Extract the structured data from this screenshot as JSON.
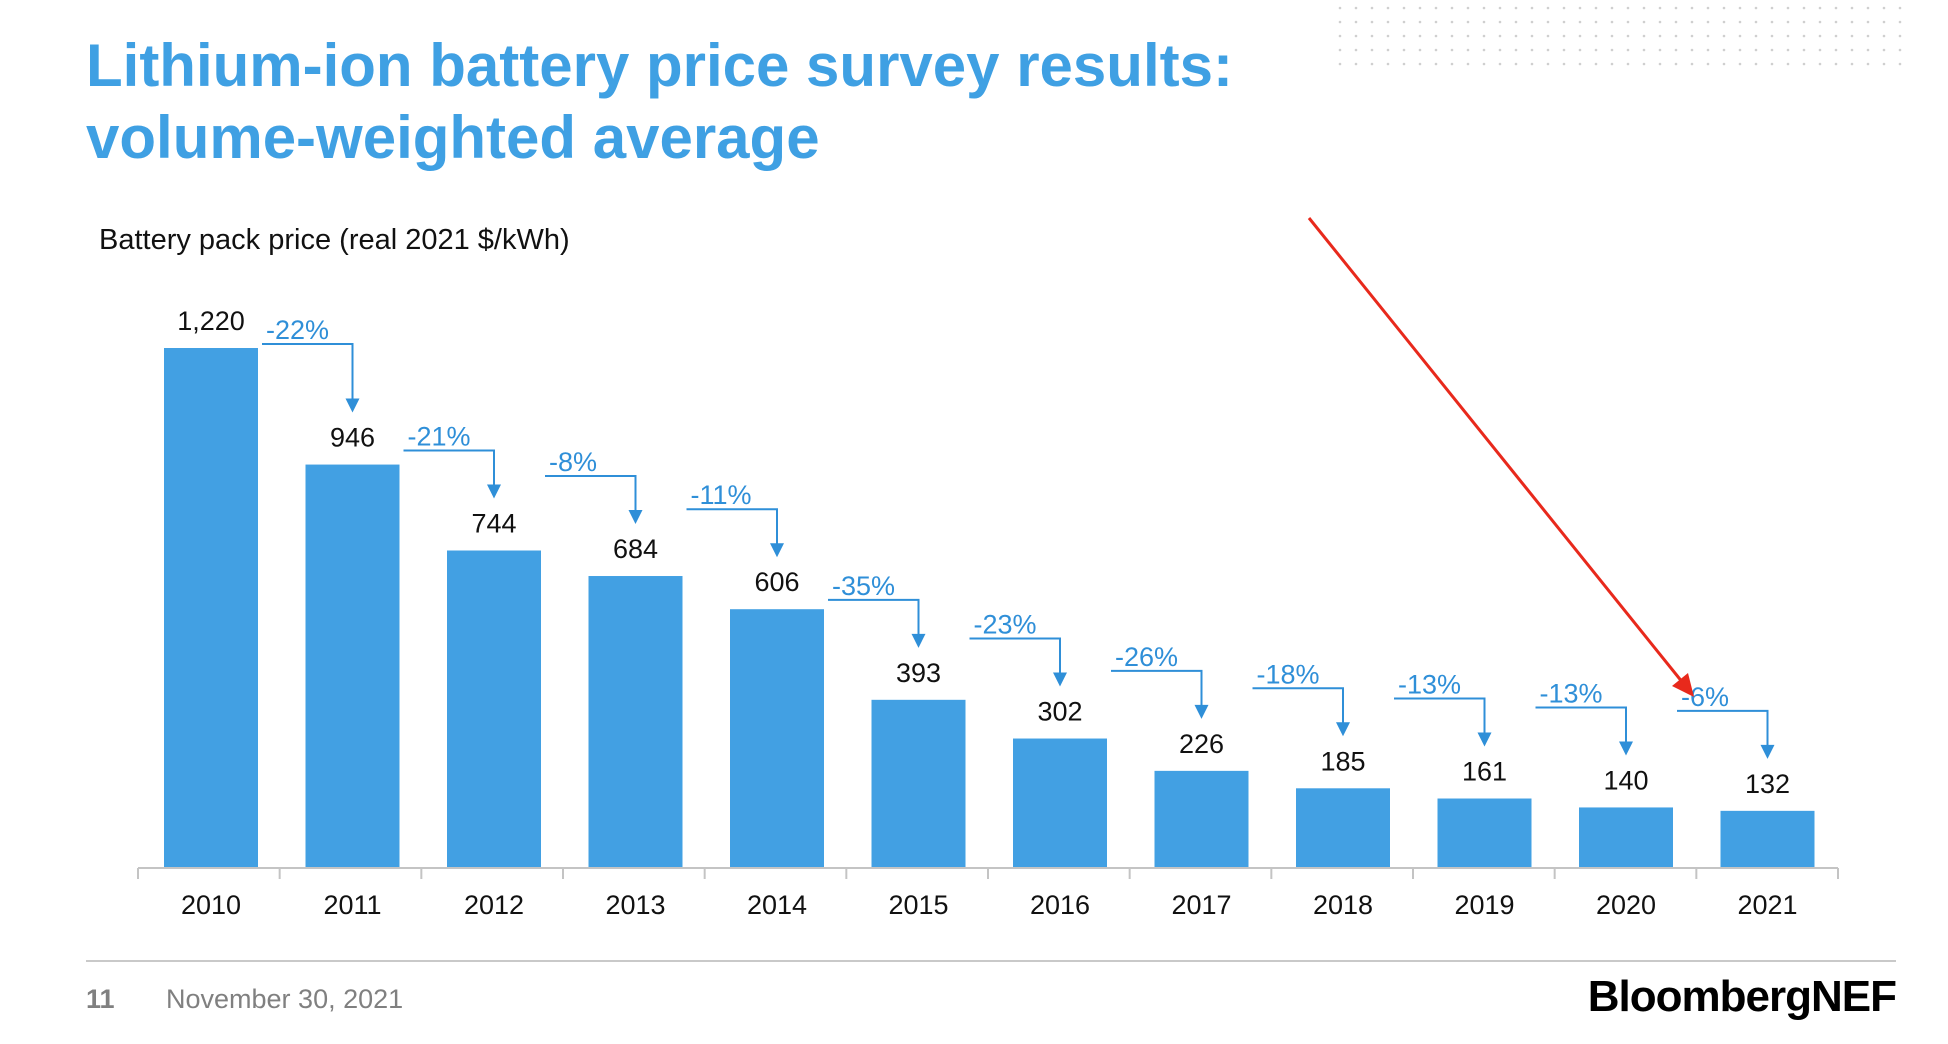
{
  "slide": {
    "title_line1": "Lithium-ion battery price survey results:",
    "title_line2": "volume-weighted average",
    "page_number": "11",
    "date": "November 30, 2021",
    "brand": "BloombergNEF"
  },
  "colors": {
    "title": "#3fa0e3",
    "bar": "#42a0e3",
    "change_label": "#2f8fd8",
    "highlight_arrow": "#e8291c"
  },
  "chart_data": {
    "type": "bar",
    "ylabel": "Battery pack price (real 2021 $/kWh)",
    "categories": [
      "2010",
      "2011",
      "2012",
      "2013",
      "2014",
      "2015",
      "2016",
      "2017",
      "2018",
      "2019",
      "2020",
      "2021"
    ],
    "values": [
      1220,
      946,
      744,
      684,
      606,
      393,
      302,
      226,
      185,
      161,
      140,
      132
    ],
    "value_labels": [
      "1,220",
      "946",
      "744",
      "684",
      "606",
      "393",
      "302",
      "226",
      "185",
      "161",
      "140",
      "132"
    ],
    "annotations": {
      "year_over_year_change": [
        "-22%",
        "-21%",
        "-8%",
        "-11%",
        "-35%",
        "-23%",
        "-26%",
        "-18%",
        "-13%",
        "-13%",
        "-6%"
      ]
    },
    "ylim": [
      0,
      1220
    ],
    "grid": false,
    "legend": "none"
  }
}
